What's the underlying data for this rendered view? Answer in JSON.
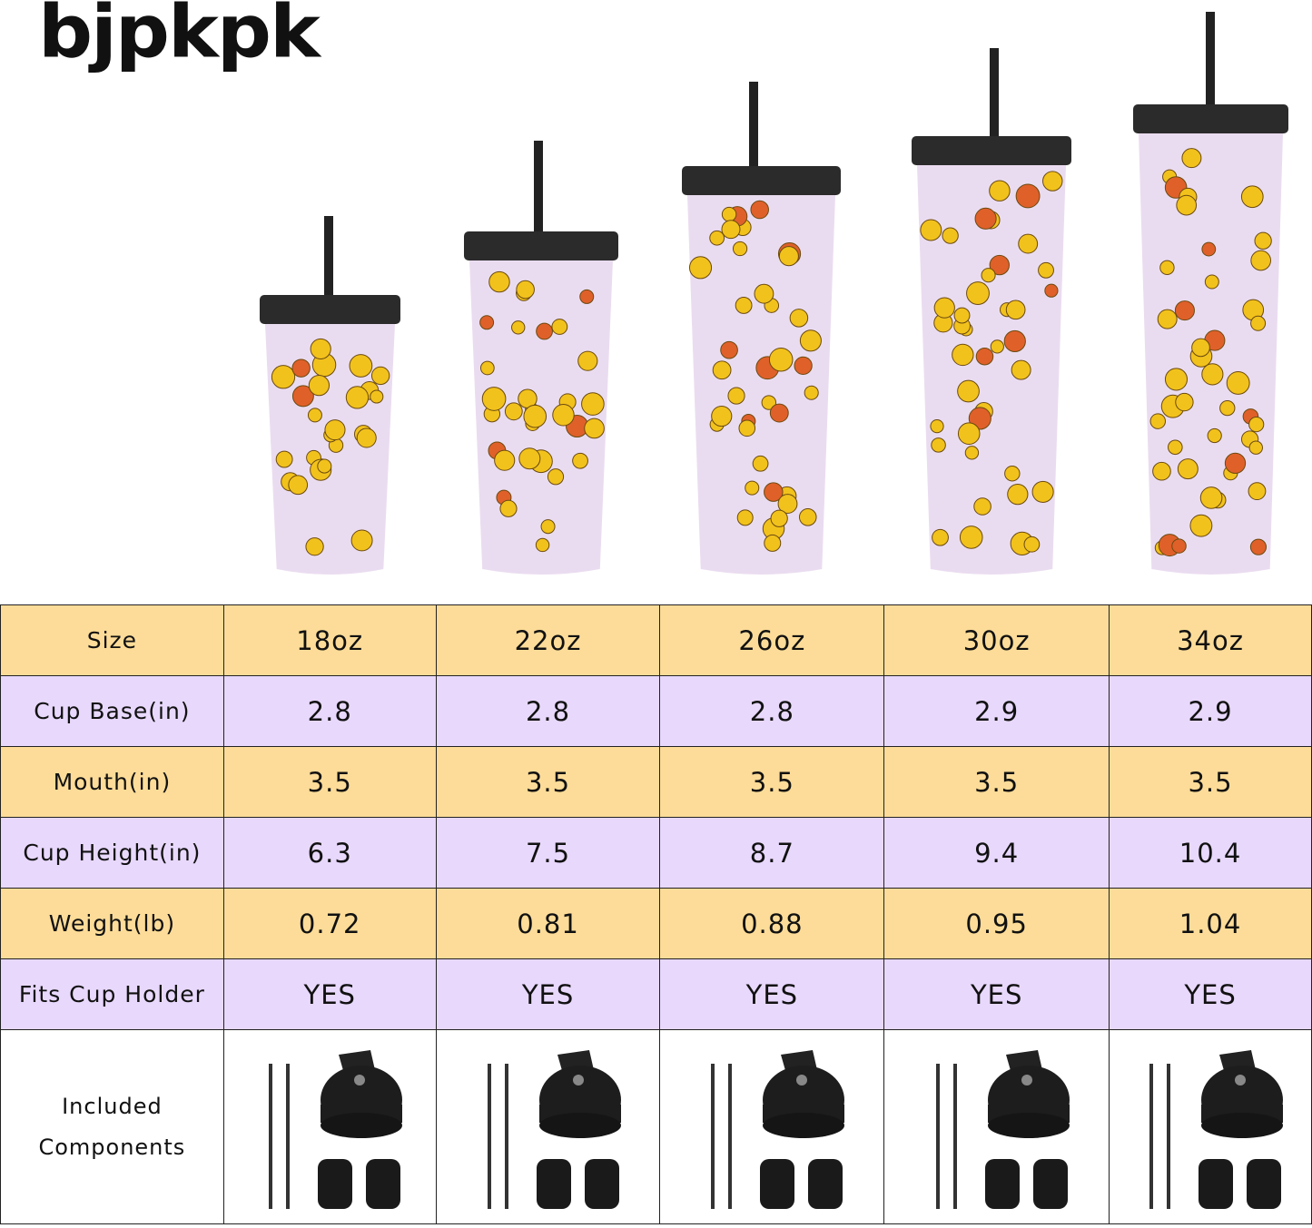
{
  "brand": {
    "logo_text": "BJPKPK"
  },
  "colors": {
    "row_yellow": "#fcdc98",
    "row_purple": "#e8d8fc",
    "cup_body": "#eadcf0",
    "lid": "#2b2b2b"
  },
  "table": {
    "sizes": [
      "18oz",
      "22oz",
      "26oz",
      "30oz",
      "34oz"
    ],
    "rows": [
      {
        "label": "Size",
        "values": [
          "18oz",
          "22oz",
          "26oz",
          "30oz",
          "34oz"
        ]
      },
      {
        "label": "Cup Base(in)",
        "values": [
          "2.8",
          "2.8",
          "2.8",
          "2.9",
          "2.9"
        ]
      },
      {
        "label": "Mouth(in)",
        "values": [
          "3.5",
          "3.5",
          "3.5",
          "3.5",
          "3.5"
        ]
      },
      {
        "label": "Cup Height(in)",
        "values": [
          "6.3",
          "7.5",
          "8.7",
          "9.4",
          "10.4"
        ]
      },
      {
        "label": "Weight(lb)",
        "values": [
          "0.72",
          "0.81",
          "0.88",
          "0.95",
          "1.04"
        ]
      },
      {
        "label": "Fits Cup Holder",
        "values": [
          "YES",
          "YES",
          "YES",
          "YES",
          "YES"
        ]
      }
    ],
    "components_label": "Included Components"
  }
}
